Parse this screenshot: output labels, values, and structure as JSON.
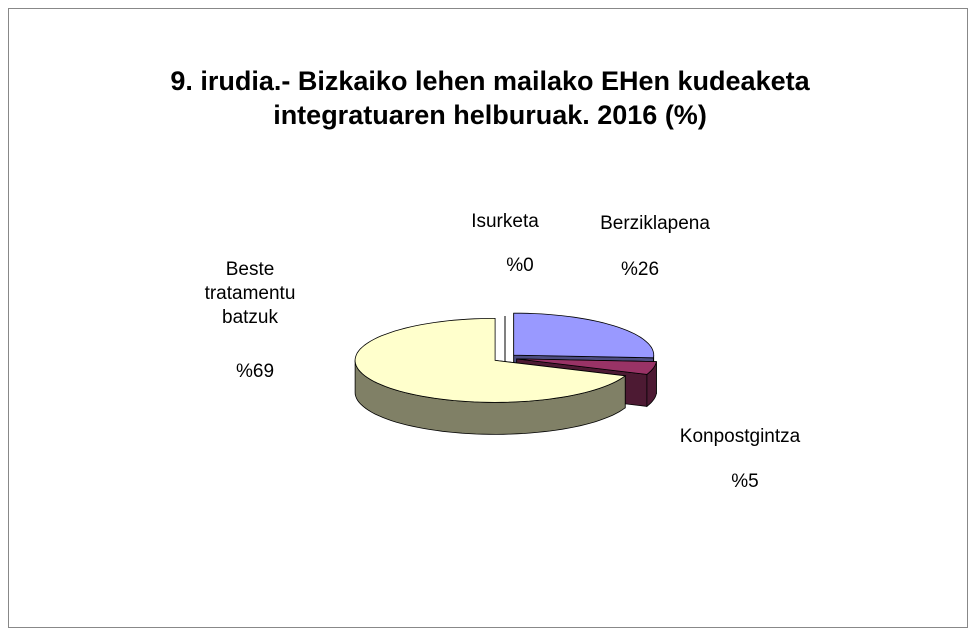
{
  "chart_data": {
    "type": "pie",
    "title": "9. irudia.- Bizkaiko lehen mailako EHen kudeaketa integratuaren helburuak. 2016 (%)",
    "categories": [
      "Berziklapena",
      "Konpostgintza",
      "Beste tratamentu batzuk",
      "Isurketa"
    ],
    "values": [
      26,
      5,
      69,
      0
    ],
    "value_labels": [
      "%26",
      "%5",
      "%69",
      "%0"
    ],
    "colors": [
      "#9999ff",
      "#993366",
      "#ffffcc",
      "#ffffff"
    ]
  }
}
